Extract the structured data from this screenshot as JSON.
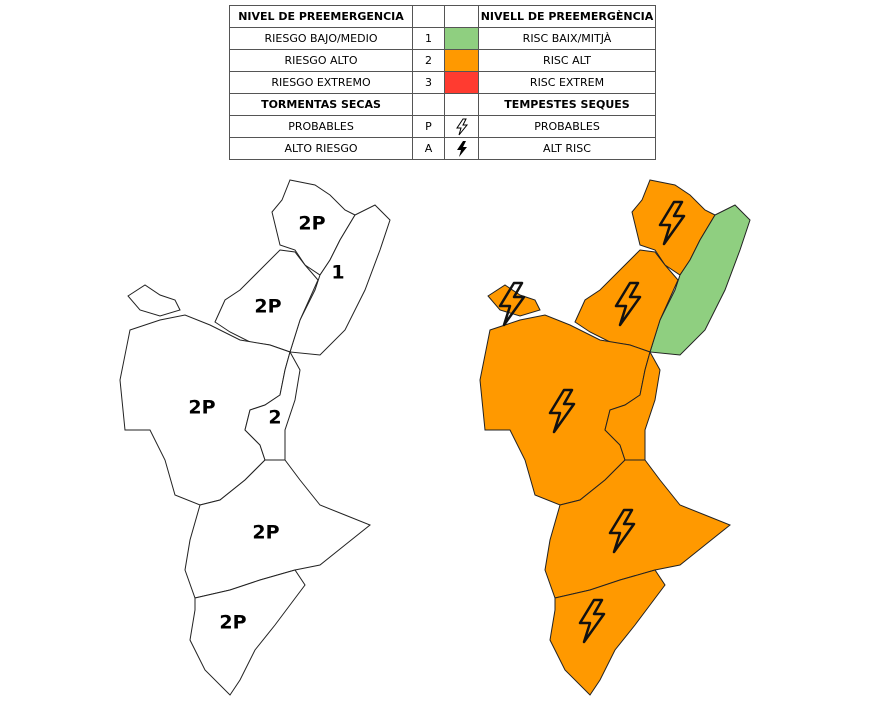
{
  "table": {
    "header": [
      "NIVEL DE PREEMERGENCIA",
      "NIVELL DE PREEMERGÈNCIA"
    ],
    "levels": [
      {
        "es": "RIESGO BAJO/MEDIO",
        "code": "1",
        "color": "#8fcf80",
        "ca": "RISC BAIX/MITJÀ"
      },
      {
        "es": "RIESGO ALTO",
        "code": "2",
        "color": "#ff9900",
        "ca": "RISC ALT"
      },
      {
        "es": "RIESGO EXTREMO",
        "code": "3",
        "color": "#ff3b30",
        "ca": "RISC EXTREM"
      }
    ],
    "storm_header": [
      "TORMENTAS SECAS",
      "TEMPESTES SEQUES"
    ],
    "storms": [
      {
        "es": "PROBABLES",
        "code": "P",
        "ca": "PROBABLES"
      },
      {
        "es": "ALTO RIESGO",
        "code": "A",
        "ca": "ALT RISC"
      }
    ]
  },
  "map": {
    "regions": [
      {
        "label": "2P"
      },
      {
        "label": "1"
      },
      {
        "label": "2P"
      },
      {
        "label": "2P"
      },
      {
        "label": "2"
      },
      {
        "label": "2P"
      },
      {
        "label": "2P"
      }
    ]
  }
}
